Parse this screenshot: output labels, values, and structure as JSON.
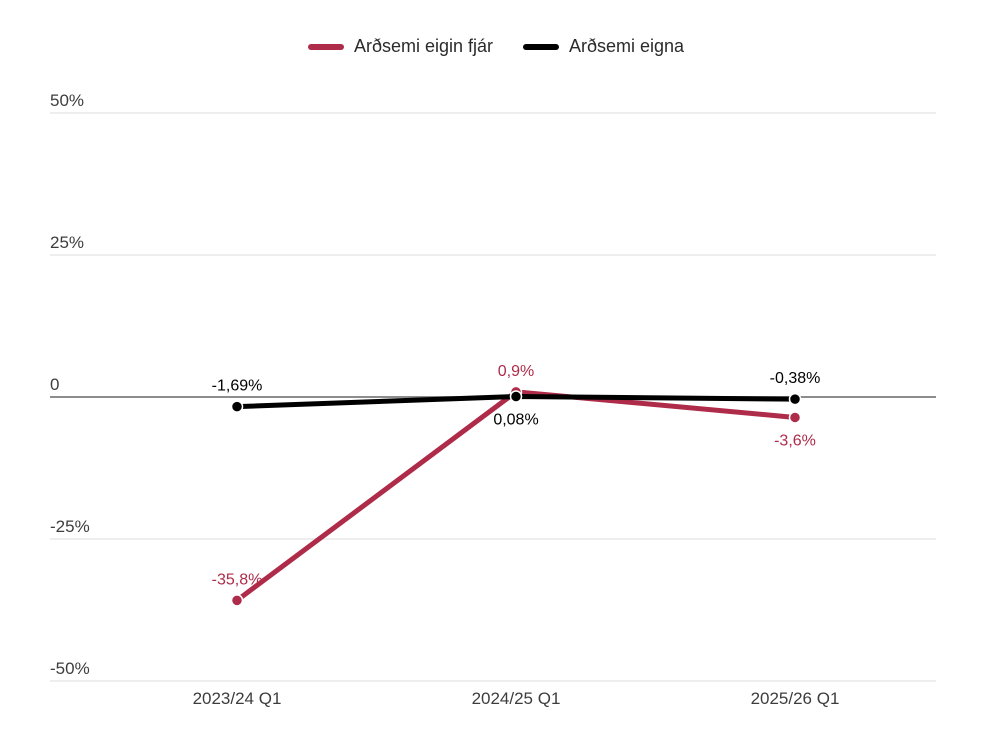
{
  "legend": {
    "items": [
      {
        "label": "Arðsemi eigin fjár",
        "color": "#ae2b49"
      },
      {
        "label": "Arðsemi eigna",
        "color": "#000000"
      }
    ]
  },
  "chart_data": {
    "type": "line",
    "title": "",
    "xlabel": "",
    "ylabel": "",
    "categories": [
      "2023/24 Q1",
      "2024/25 Q1",
      "2025/26 Q1"
    ],
    "series": [
      {
        "name": "Arðsemi eigin fjár",
        "color": "#ae2b49",
        "values": [
          -35.8,
          0.9,
          -3.6
        ],
        "point_labels": [
          "-35,8%",
          "0,9%",
          "-3,6%"
        ],
        "label_positions": [
          "above",
          "above",
          "below"
        ]
      },
      {
        "name": "Arðsemi eigna",
        "color": "#000000",
        "values": [
          -1.69,
          0.08,
          -0.38
        ],
        "point_labels": [
          "-1,69%",
          "0,08%",
          "-0,38%"
        ],
        "label_positions": [
          "above",
          "below",
          "above"
        ]
      }
    ],
    "y_ticks": [
      {
        "value": 50,
        "label": "50%"
      },
      {
        "value": 25,
        "label": "25%"
      },
      {
        "value": 0,
        "label": "0"
      },
      {
        "value": -25,
        "label": "-25%"
      },
      {
        "value": -50,
        "label": "-50%"
      }
    ],
    "ylim": [
      -50,
      50
    ],
    "grid": true,
    "legend_position": "top",
    "colors": {
      "grid_line": "#e8e8e8",
      "zero_line": "#7d7d7d",
      "tick_text": "#3d3d3d"
    }
  }
}
